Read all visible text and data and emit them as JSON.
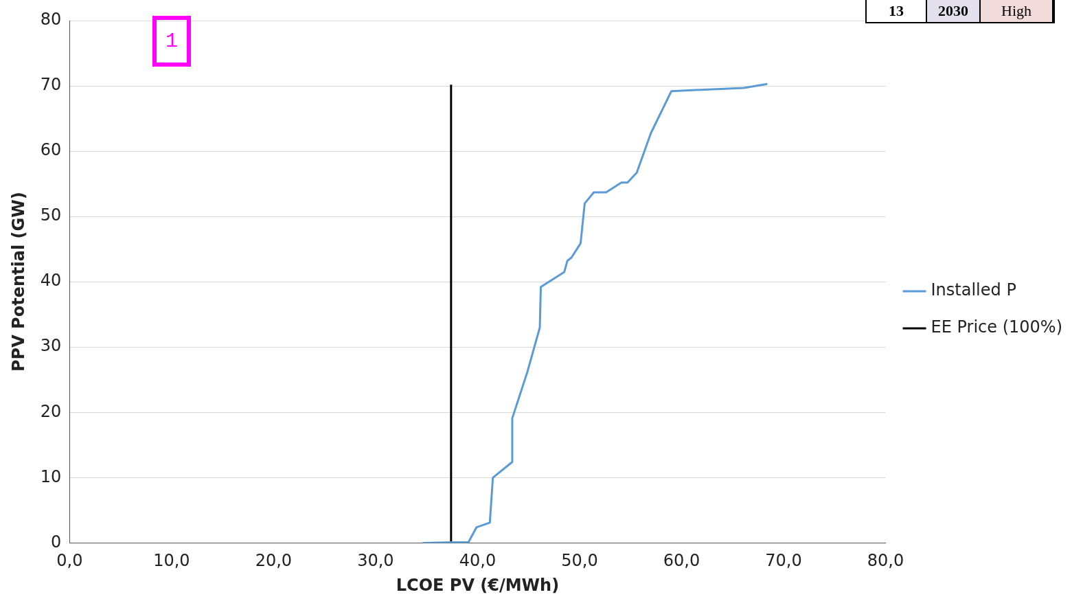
{
  "chart_data": {
    "type": "line",
    "xlabel": "LCOE PV (€/MWh)",
    "ylabel": "PPV Potential (GW)",
    "xlim": [
      0,
      80
    ],
    "xticks": [
      {
        "value": 0,
        "label": "0,0"
      },
      {
        "value": 10,
        "label": "10,0"
      },
      {
        "value": 20,
        "label": "20,0"
      },
      {
        "value": 30,
        "label": "30,0"
      },
      {
        "value": 40,
        "label": "40,0"
      },
      {
        "value": 50,
        "label": "50,0"
      },
      {
        "value": 60,
        "label": "60,0"
      },
      {
        "value": 70,
        "label": "70,0"
      },
      {
        "value": 80,
        "label": "80,0"
      }
    ],
    "ylim": [
      0,
      80
    ],
    "yticks": [
      0,
      10,
      20,
      30,
      40,
      50,
      60,
      70,
      80
    ],
    "grid": "y",
    "legend": "right",
    "marker": "none",
    "series": [
      {
        "name": "Installed P",
        "color": "#5b9bd5",
        "x": [
          34.6,
          37.4,
          39.1,
          39.9,
          41.2,
          41.5,
          43.4,
          43.4,
          44.9,
          46.1,
          46.2,
          48.5,
          48.8,
          49.2,
          50.1,
          50.5,
          51.4,
          52.6,
          54.1,
          54.7,
          55.6,
          57.0,
          59.0,
          66.1,
          68.4
        ],
        "values": [
          0,
          0.1,
          0.1,
          2.4,
          3.1,
          10.0,
          12.4,
          19.1,
          26.3,
          33.0,
          39.2,
          41.5,
          43.2,
          43.7,
          45.9,
          52.0,
          53.7,
          53.7,
          55.2,
          55.2,
          56.7,
          62.8,
          69.2,
          69.7,
          70.3
        ]
      },
      {
        "name": "EE Price (100%)",
        "color": "#000000",
        "x": [
          37.4,
          37.4
        ],
        "values": [
          0,
          70.2
        ]
      }
    ],
    "annotations": [
      "1",
      "13",
      "2030",
      "High"
    ]
  }
}
